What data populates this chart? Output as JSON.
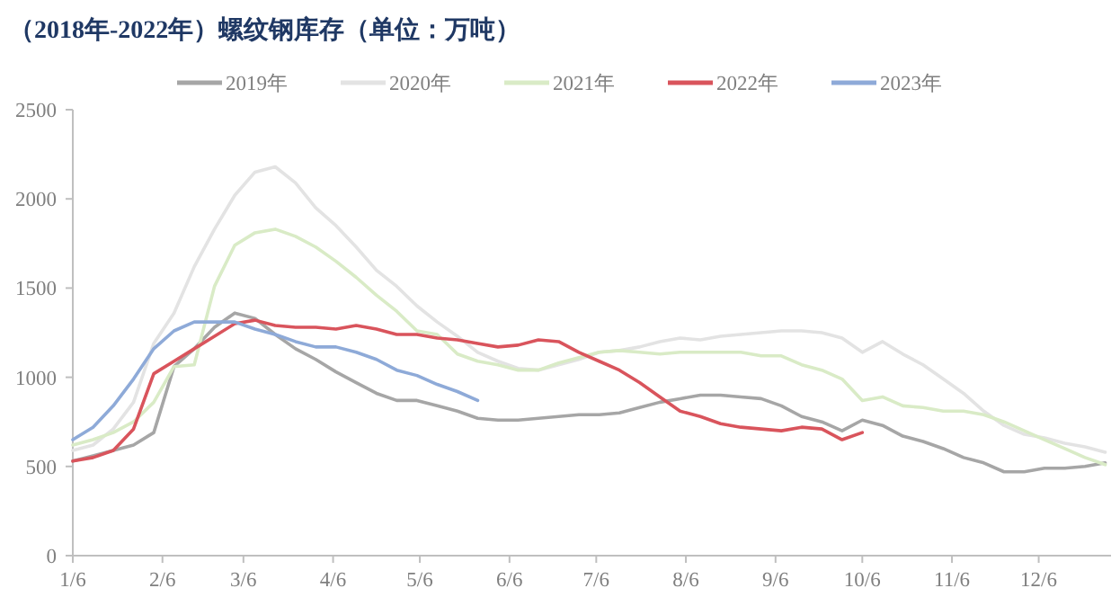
{
  "chart_data": {
    "type": "line",
    "title": "（2018年-2022年）螺纹钢库存（单位：万吨）",
    "x": [
      "--01-06",
      "--01-13",
      "--01-20",
      "--01-27",
      "--02-03",
      "--02-10",
      "--02-17",
      "--02-24",
      "--03-03",
      "--03-10",
      "--03-17",
      "--03-24",
      "--03-31",
      "--04-07",
      "--04-14",
      "--04-21",
      "--04-28",
      "--05-05",
      "--05-12",
      "--05-19",
      "--05-26",
      "--06-02",
      "--06-09",
      "--06-16",
      "--06-23",
      "--06-30",
      "--07-07",
      "--07-14",
      "--07-21",
      "--07-28",
      "--08-04",
      "--08-11",
      "--08-18",
      "--08-25",
      "--09-01",
      "--09-08",
      "--09-15",
      "--09-22",
      "--09-29",
      "--10-06",
      "--10-13",
      "--10-20",
      "--10-27",
      "--11-03",
      "--11-10",
      "--11-17",
      "--11-24",
      "--12-01",
      "--12-08",
      "--12-15",
      "--12-22",
      "--12-29"
    ],
    "xlim": [
      "--01-06",
      "--12-31"
    ],
    "xticks": [
      {
        "value": "--01-06",
        "label": "1/6"
      },
      {
        "value": "--02-06",
        "label": "2/6"
      },
      {
        "value": "--03-06",
        "label": "3/6"
      },
      {
        "value": "--04-06",
        "label": "4/6"
      },
      {
        "value": "--05-06",
        "label": "5/6"
      },
      {
        "value": "--06-06",
        "label": "6/6"
      },
      {
        "value": "--07-06",
        "label": "7/6"
      },
      {
        "value": "--08-06",
        "label": "8/6"
      },
      {
        "value": "--09-06",
        "label": "9/6"
      },
      {
        "value": "--10-06",
        "label": "10/6"
      },
      {
        "value": "--11-06",
        "label": "11/6"
      },
      {
        "value": "--12-06",
        "label": "12/6"
      }
    ],
    "ylim": [
      0,
      2500
    ],
    "yticks": [
      0,
      500,
      1000,
      1500,
      2000,
      2500
    ],
    "legend": "top",
    "series": [
      {
        "name": "2019年",
        "color": "#a6a6a6",
        "values": [
          530,
          560,
          590,
          620,
          690,
          1060,
          1160,
          1280,
          1360,
          1330,
          1240,
          1160,
          1100,
          1030,
          970,
          910,
          870,
          870,
          840,
          810,
          770,
          760,
          760,
          770,
          780,
          790,
          790,
          800,
          830,
          860,
          880,
          900,
          900,
          890,
          880,
          840,
          780,
          750,
          700,
          760,
          730,
          670,
          640,
          600,
          550,
          520,
          470,
          470,
          490,
          490,
          500,
          520
        ]
      },
      {
        "name": "2020年",
        "color": "#e3e3e3",
        "values": [
          590,
          620,
          710,
          860,
          1190,
          1360,
          1620,
          1830,
          2020,
          2150,
          2180,
          2090,
          1950,
          1850,
          1730,
          1600,
          1510,
          1400,
          1310,
          1230,
          1140,
          1090,
          1050,
          1040,
          1070,
          1100,
          1140,
          1150,
          1170,
          1200,
          1220,
          1210,
          1230,
          1240,
          1250,
          1260,
          1260,
          1250,
          1220,
          1140,
          1200,
          1130,
          1070,
          990,
          910,
          810,
          730,
          680,
          660,
          630,
          610,
          580
        ]
      },
      {
        "name": "2021年",
        "color": "#d9ebc6",
        "values": [
          620,
          650,
          690,
          750,
          860,
          1060,
          1070,
          1510,
          1740,
          1810,
          1830,
          1790,
          1730,
          1650,
          1560,
          1460,
          1370,
          1260,
          1240,
          1130,
          1090,
          1070,
          1040,
          1040,
          1080,
          1110,
          1140,
          1150,
          1140,
          1130,
          1140,
          1140,
          1140,
          1140,
          1120,
          1120,
          1070,
          1040,
          990,
          870,
          890,
          840,
          830,
          810,
          810,
          790,
          750,
          700,
          650,
          600,
          550,
          510
        ]
      },
      {
        "name": "2022年",
        "color": "#d9545c",
        "values": [
          530,
          550,
          590,
          710,
          1020,
          1090,
          1160,
          1230,
          1300,
          1320,
          1290,
          1280,
          1280,
          1270,
          1290,
          1270,
          1240,
          1240,
          1220,
          1210,
          1190,
          1170,
          1180,
          1210,
          1200,
          1140,
          1090,
          1040,
          970,
          890,
          810,
          780,
          740,
          720,
          710,
          700,
          720,
          710,
          650,
          690,
          null,
          null,
          null,
          null,
          null,
          null,
          null,
          null,
          null,
          null,
          null,
          null
        ]
      },
      {
        "name": "2023年",
        "color": "#8eaad8",
        "values": [
          650,
          720,
          840,
          990,
          1160,
          1260,
          1310,
          1310,
          1310,
          1270,
          1240,
          1200,
          1170,
          1170,
          1140,
          1100,
          1040,
          1010,
          960,
          920,
          870,
          null,
          null,
          null,
          null,
          null,
          null,
          null,
          null,
          null,
          null,
          null,
          null,
          null,
          null,
          null,
          null,
          null,
          null,
          null,
          null,
          null,
          null,
          null,
          null,
          null,
          null,
          null,
          null,
          null,
          null,
          null
        ]
      }
    ]
  }
}
